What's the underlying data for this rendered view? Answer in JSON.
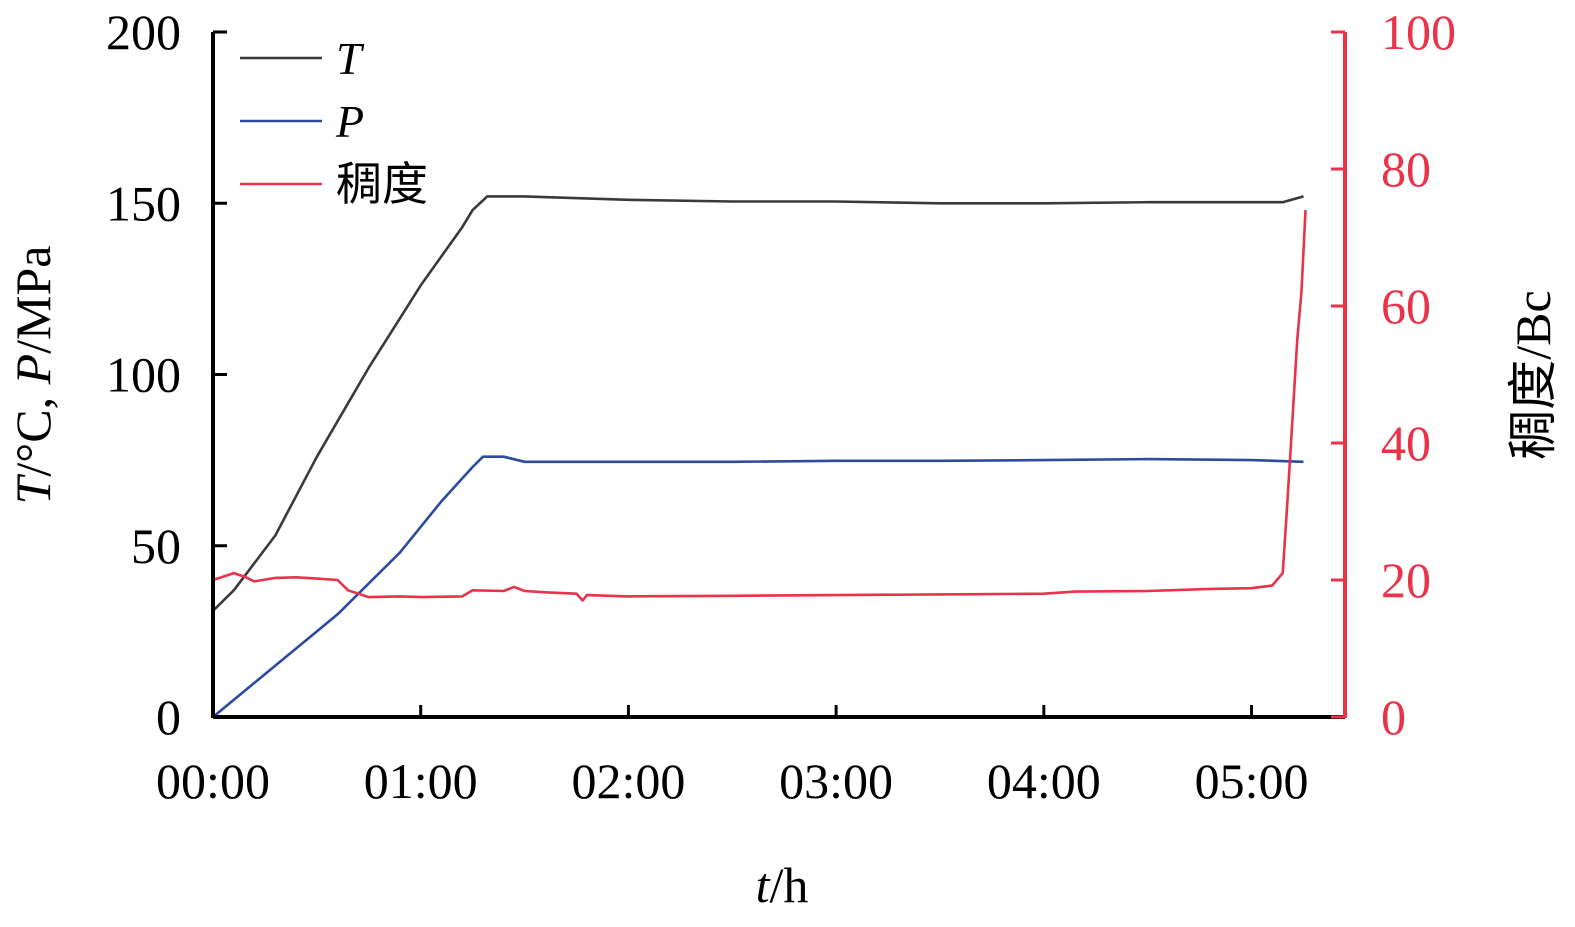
{
  "chart_data": {
    "type": "line",
    "x_axis": {
      "label_italic": "t",
      "label_rest": "/h",
      "ticks": [
        "00:00",
        "01:00",
        "02:00",
        "03:00",
        "04:00",
        "05:00"
      ],
      "range_hours": [
        0,
        5.45
      ]
    },
    "y_left": {
      "label_parts": [
        {
          "text": "T",
          "italic": true
        },
        {
          "text": "/°C, ",
          "italic": false
        },
        {
          "text": "P",
          "italic": true
        },
        {
          "text": "/MPa",
          "italic": false
        }
      ],
      "ticks": [
        "0",
        "50",
        "100",
        "150",
        "200"
      ],
      "range": [
        0,
        200
      ]
    },
    "y_right": {
      "label": "稠度/Bc",
      "ticks": [
        "0",
        "20",
        "40",
        "60",
        "80",
        "100"
      ],
      "range": [
        0,
        100
      ],
      "color": "#e8334a"
    },
    "legend": [
      {
        "label": "T",
        "italic": true,
        "color": "#3a3a3a"
      },
      {
        "label": "P",
        "italic": true,
        "color": "#2b4aa0"
      },
      {
        "label": "稠度",
        "italic": false,
        "color": "#e8334a"
      }
    ],
    "series": [
      {
        "name": "T",
        "axis": "left",
        "color": "#3a3a3a",
        "points": [
          [
            0,
            31
          ],
          [
            0.1,
            37
          ],
          [
            0.3,
            53
          ],
          [
            0.5,
            76
          ],
          [
            0.75,
            102
          ],
          [
            1.0,
            126
          ],
          [
            1.2,
            143
          ],
          [
            1.25,
            148
          ],
          [
            1.32,
            152
          ],
          [
            1.5,
            152
          ],
          [
            2.0,
            151
          ],
          [
            2.5,
            150.5
          ],
          [
            3.0,
            150.5
          ],
          [
            3.5,
            150
          ],
          [
            4.0,
            150
          ],
          [
            4.5,
            150.3
          ],
          [
            5.0,
            150.3
          ],
          [
            5.15,
            150.3
          ],
          [
            5.25,
            152
          ]
        ]
      },
      {
        "name": "P",
        "axis": "left",
        "color": "#2b4aa0",
        "points": [
          [
            0,
            0
          ],
          [
            0.3,
            15
          ],
          [
            0.6,
            30
          ],
          [
            0.9,
            48
          ],
          [
            1.1,
            63
          ],
          [
            1.25,
            73
          ],
          [
            1.3,
            76
          ],
          [
            1.4,
            76
          ],
          [
            1.5,
            74.5
          ],
          [
            2.0,
            74.5
          ],
          [
            2.5,
            74.5
          ],
          [
            3.0,
            74.8
          ],
          [
            3.5,
            74.8
          ],
          [
            4.0,
            75
          ],
          [
            4.5,
            75.3
          ],
          [
            5.0,
            75
          ],
          [
            5.25,
            74.5
          ]
        ]
      },
      {
        "name": "稠度",
        "axis": "right",
        "color": "#e8334a",
        "points": [
          [
            0,
            20
          ],
          [
            0.05,
            20.5
          ],
          [
            0.1,
            21
          ],
          [
            0.15,
            20.5
          ],
          [
            0.2,
            19.8
          ],
          [
            0.3,
            20.3
          ],
          [
            0.4,
            20.4
          ],
          [
            0.5,
            20.2
          ],
          [
            0.6,
            20
          ],
          [
            0.65,
            18.5
          ],
          [
            0.75,
            17.5
          ],
          [
            0.9,
            17.6
          ],
          [
            1.0,
            17.5
          ],
          [
            1.2,
            17.6
          ],
          [
            1.25,
            18.5
          ],
          [
            1.4,
            18.4
          ],
          [
            1.45,
            19
          ],
          [
            1.5,
            18.4
          ],
          [
            1.6,
            18.2
          ],
          [
            1.75,
            18
          ],
          [
            1.78,
            17
          ],
          [
            1.8,
            17.8
          ],
          [
            2.0,
            17.6
          ],
          [
            2.5,
            17.7
          ],
          [
            3.0,
            17.8
          ],
          [
            3.5,
            17.9
          ],
          [
            4.0,
            18.0
          ],
          [
            4.15,
            18.3
          ],
          [
            4.5,
            18.4
          ],
          [
            4.8,
            18.7
          ],
          [
            5.0,
            18.8
          ],
          [
            5.1,
            19.2
          ],
          [
            5.15,
            21
          ],
          [
            5.17,
            30
          ],
          [
            5.2,
            45
          ],
          [
            5.22,
            55
          ],
          [
            5.24,
            62
          ],
          [
            5.25,
            68
          ],
          [
            5.26,
            74
          ]
        ]
      }
    ]
  }
}
